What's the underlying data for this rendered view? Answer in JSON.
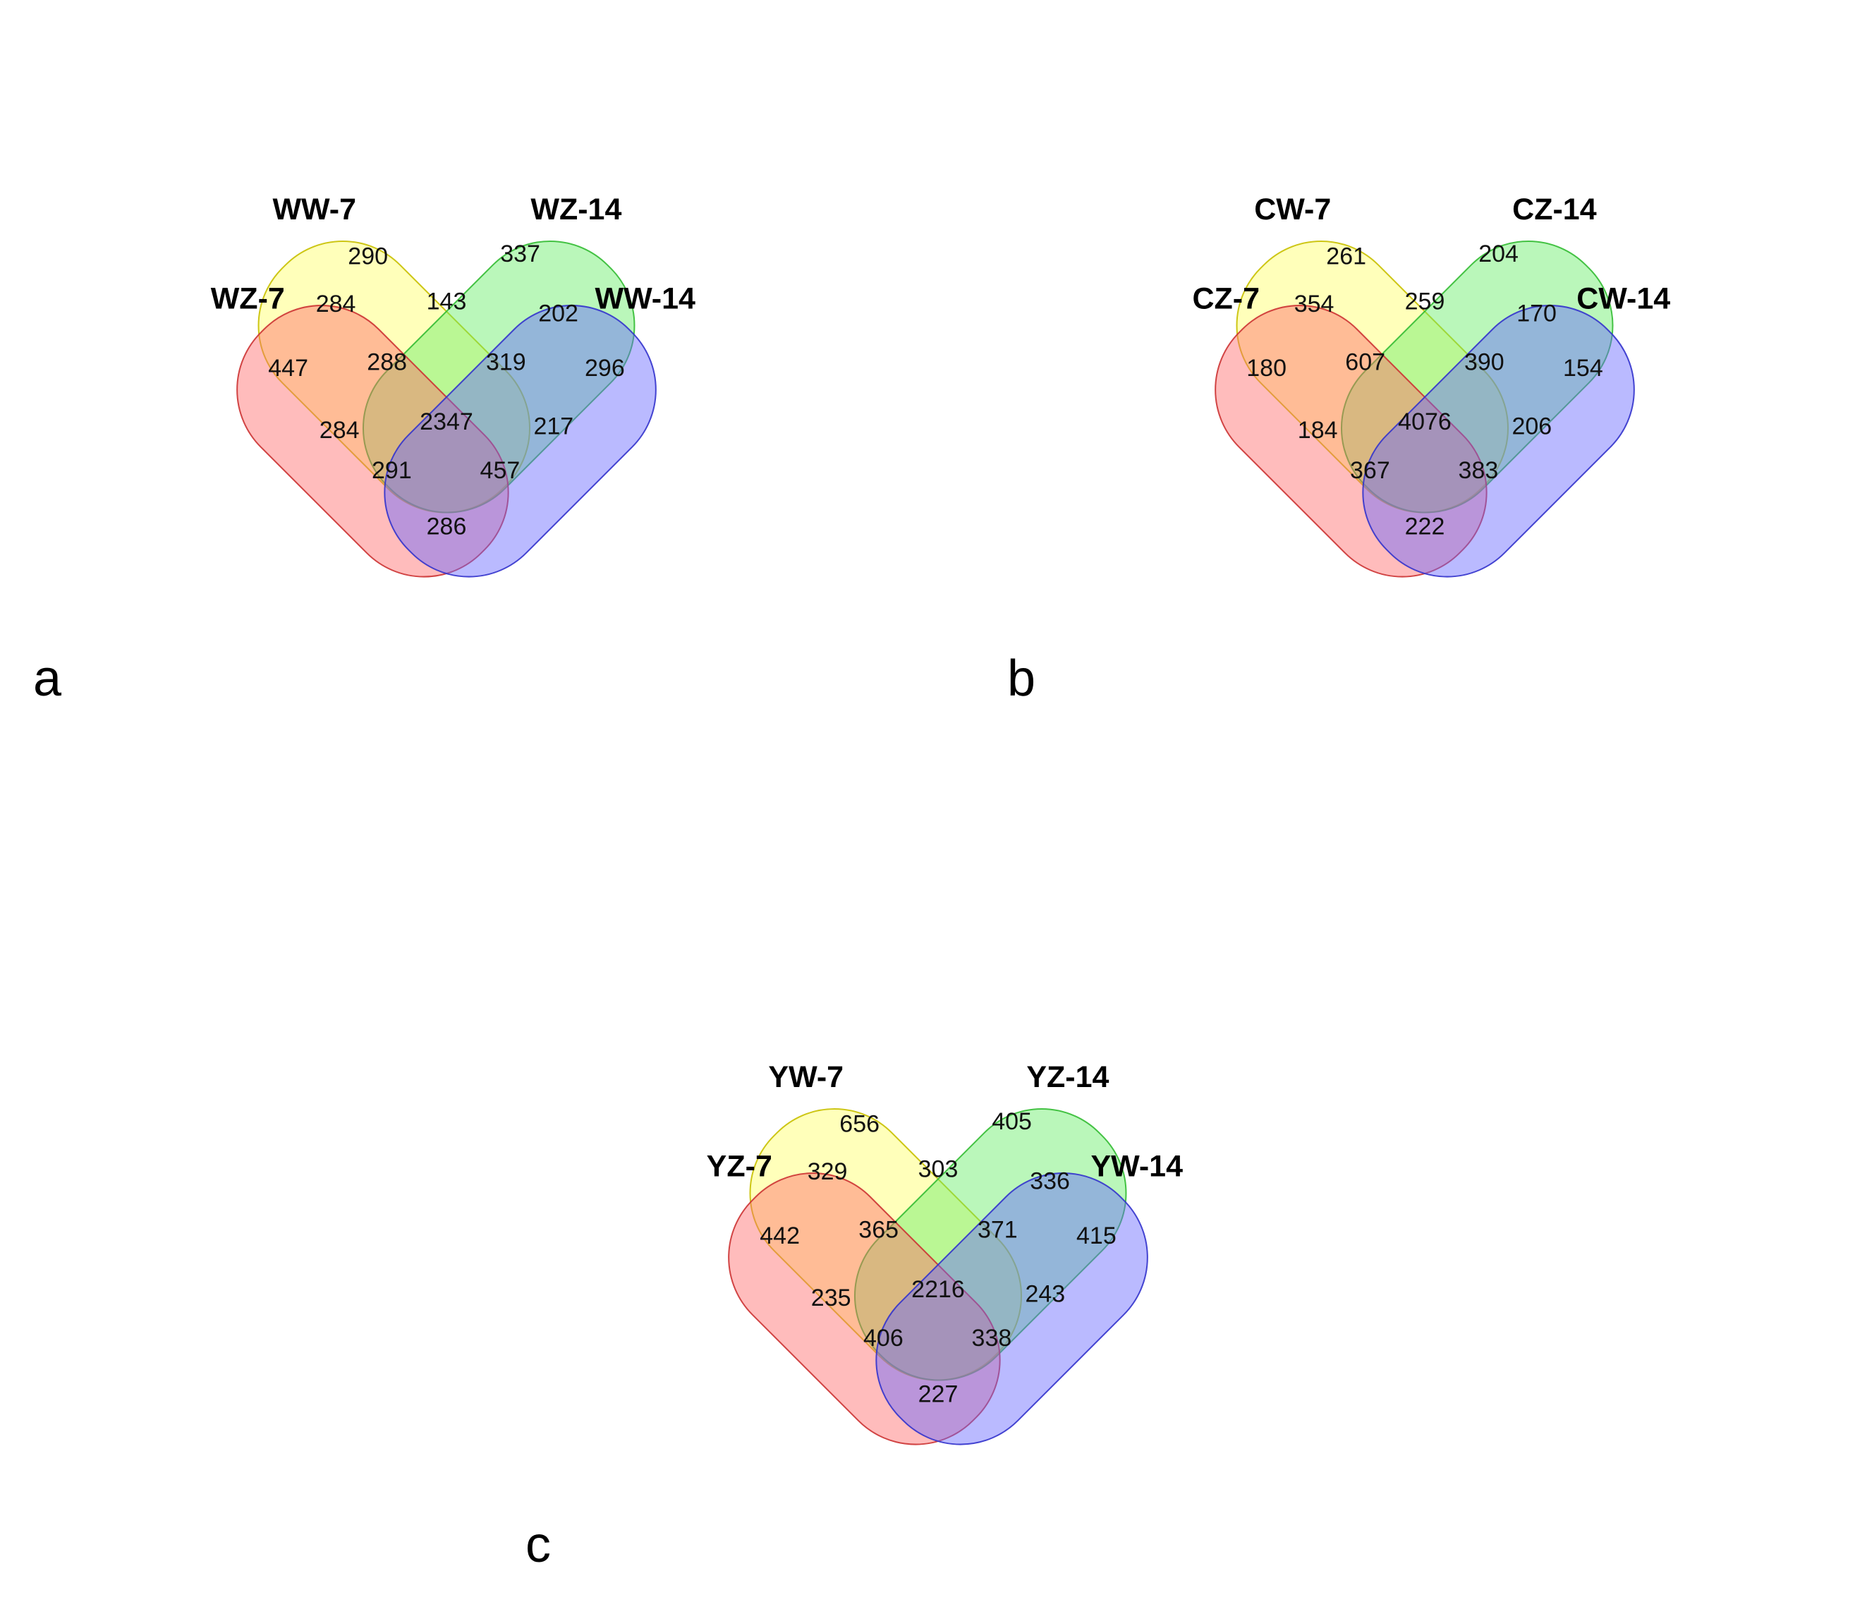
{
  "set_colors": {
    "set1": "#ff6b6b",
    "set2": "#ffff66",
    "set3": "#66ee66",
    "set4": "#6666ff"
  },
  "panels": [
    {
      "letter": "a",
      "sets": {
        "set1": "WZ-7",
        "set2": "WW-7",
        "set3": "WZ-14",
        "set4": "WW-14"
      },
      "counts": {
        "only_2": "290",
        "only_3": "337",
        "s1_s2": "284",
        "s2_s3": "143",
        "s3_s4": "202",
        "only_1": "447",
        "s1_s2_s3": "288",
        "s2_s3_s4": "319",
        "only_4": "296",
        "s1_s3": "284",
        "all": "2347",
        "s2_s4": "217",
        "s1_s3_s4": "291",
        "s1_s2_s4": "457",
        "s1_s4": "286"
      }
    },
    {
      "letter": "b",
      "sets": {
        "set1": "CZ-7",
        "set2": "CW-7",
        "set3": "CZ-14",
        "set4": "CW-14"
      },
      "counts": {
        "only_2": "261",
        "only_3": "204",
        "s1_s2": "354",
        "s2_s3": "259",
        "s3_s4": "170",
        "only_1": "180",
        "s1_s2_s3": "607",
        "s2_s3_s4": "390",
        "only_4": "154",
        "s1_s3": "184",
        "all": "4076",
        "s2_s4": "206",
        "s1_s3_s4": "367",
        "s1_s2_s4": "383",
        "s1_s4": "222"
      }
    },
    {
      "letter": "c",
      "sets": {
        "set1": "YZ-7",
        "set2": "YW-7",
        "set3": "YZ-14",
        "set4": "YW-14"
      },
      "counts": {
        "only_2": "656",
        "only_3": "405",
        "s1_s2": "329",
        "s2_s3": "303",
        "s3_s4": "336",
        "only_1": "442",
        "s1_s2_s3": "365",
        "s2_s3_s4": "371",
        "only_4": "415",
        "s1_s3": "235",
        "all": "2216",
        "s2_s4": "243",
        "s1_s3_s4": "406",
        "s1_s2_s4": "338",
        "s1_s4": "227"
      }
    }
  ]
}
